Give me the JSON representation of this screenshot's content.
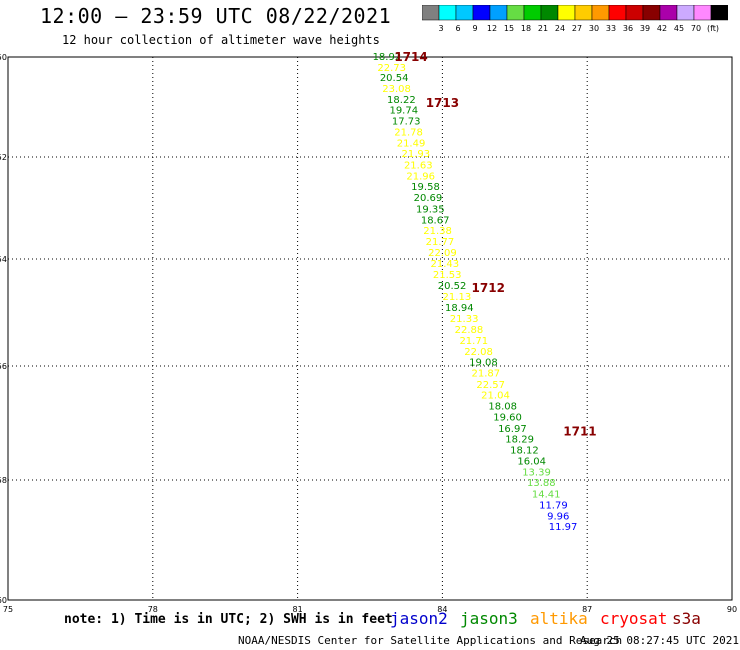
{
  "header": {
    "title": "12:00 – 23:59 UTC 08/22/2021",
    "subtitle": "12 hour collection of altimeter wave heights"
  },
  "color_scale": {
    "unit": "(ft)",
    "colors": [
      "#808080",
      "#00ffff",
      "#00c8ff",
      "#0000ff",
      "#00a0ff",
      "#66dd44",
      "#00cc00",
      "#008800",
      "#ffff00",
      "#ffcc00",
      "#ff9900",
      "#ff0000",
      "#cc0000",
      "#880000",
      "#aa00aa",
      "#ccaaff",
      "#ff88ff",
      "#000000"
    ],
    "labels": [
      "3",
      "6",
      "9",
      "12",
      "15",
      "18",
      "21",
      "24",
      "27",
      "30",
      "33",
      "36",
      "39",
      "42",
      "45",
      "70"
    ]
  },
  "chart_data": {
    "type": "scatter",
    "title": "12:00 – 23:59 UTC 08/22/2021",
    "subtitle": "12 hour collection of altimeter wave heights",
    "xlim": [
      75,
      90
    ],
    "ylim": [
      -60,
      -50
    ],
    "x_ticks": [
      "75",
      "78",
      "81",
      "84",
      "87",
      "90"
    ],
    "y_ticks": [
      "-50",
      "-52",
      "-54",
      "-56",
      "-58",
      "-60"
    ],
    "grid": true,
    "series": [
      {
        "name": "jason3",
        "points": [
          {
            "x": 82.85,
            "y": -49.98,
            "v": "18.92",
            "c": "#008800"
          },
          {
            "x": 82.95,
            "y": -50.18,
            "v": "22.73",
            "c": "#ffff00"
          },
          {
            "x": 83.0,
            "y": -50.37,
            "v": "20.54",
            "c": "#008800"
          },
          {
            "x": 83.05,
            "y": -50.57,
            "v": "23.08",
            "c": "#ffff00"
          },
          {
            "x": 83.15,
            "y": -50.77,
            "v": "18.22",
            "c": "#008800"
          },
          {
            "x": 83.2,
            "y": -50.97,
            "v": "19.74",
            "c": "#008800"
          },
          {
            "x": 83.25,
            "y": -51.17,
            "v": "17.73",
            "c": "#008800"
          },
          {
            "x": 83.3,
            "y": -51.37,
            "v": "21.78",
            "c": "#ffff00"
          },
          {
            "x": 83.35,
            "y": -51.57,
            "v": "21.49",
            "c": "#ffff00"
          },
          {
            "x": 83.45,
            "y": -51.77,
            "v": "21.93",
            "c": "#ffff00"
          },
          {
            "x": 83.5,
            "y": -51.98,
            "v": "21.63",
            "c": "#ffff00"
          },
          {
            "x": 83.55,
            "y": -52.18,
            "v": "21.96",
            "c": "#ffff00"
          },
          {
            "x": 83.65,
            "y": -52.38,
            "v": "19.58",
            "c": "#008800"
          },
          {
            "x": 83.7,
            "y": -52.58,
            "v": "20.69",
            "c": "#008800"
          },
          {
            "x": 83.75,
            "y": -52.79,
            "v": "19.35",
            "c": "#008800"
          },
          {
            "x": 83.85,
            "y": -52.99,
            "v": "18.67",
            "c": "#008800"
          },
          {
            "x": 83.9,
            "y": -53.19,
            "v": "21.38",
            "c": "#ffff00"
          },
          {
            "x": 83.95,
            "y": -53.39,
            "v": "21.77",
            "c": "#ffff00"
          },
          {
            "x": 84.0,
            "y": -53.59,
            "v": "22.09",
            "c": "#ffff00"
          },
          {
            "x": 84.05,
            "y": -53.79,
            "v": "21.43",
            "c": "#ffff00"
          },
          {
            "x": 84.1,
            "y": -54.0,
            "v": "21.53",
            "c": "#ffff00"
          },
          {
            "x": 84.2,
            "y": -54.2,
            "v": "20.52",
            "c": "#008800"
          },
          {
            "x": 84.3,
            "y": -54.4,
            "v": "21.13",
            "c": "#ffff00"
          },
          {
            "x": 84.35,
            "y": -54.6,
            "v": "18.94",
            "c": "#008800"
          },
          {
            "x": 84.45,
            "y": -54.81,
            "v": "21.33",
            "c": "#ffff00"
          },
          {
            "x": 84.55,
            "y": -55.01,
            "v": "22.88",
            "c": "#ffff00"
          },
          {
            "x": 84.65,
            "y": -55.21,
            "v": "21.71",
            "c": "#ffff00"
          },
          {
            "x": 84.75,
            "y": -55.41,
            "v": "22.08",
            "c": "#ffff00"
          },
          {
            "x": 84.85,
            "y": -55.61,
            "v": "19.08",
            "c": "#008800"
          },
          {
            "x": 84.9,
            "y": -55.81,
            "v": "21.87",
            "c": "#ffff00"
          },
          {
            "x": 85.0,
            "y": -56.02,
            "v": "22.57",
            "c": "#ffff00"
          },
          {
            "x": 85.1,
            "y": -56.22,
            "v": "21.04",
            "c": "#ffff00"
          },
          {
            "x": 85.25,
            "y": -56.42,
            "v": "18.08",
            "c": "#008800"
          },
          {
            "x": 85.35,
            "y": -56.62,
            "v": "19.60",
            "c": "#008800"
          },
          {
            "x": 85.45,
            "y": -56.83,
            "v": "16.97",
            "c": "#008800"
          },
          {
            "x": 85.6,
            "y": -57.03,
            "v": "18.29",
            "c": "#008800"
          },
          {
            "x": 85.7,
            "y": -57.23,
            "v": "18.12",
            "c": "#008800"
          },
          {
            "x": 85.85,
            "y": -57.43,
            "v": "16.04",
            "c": "#008800"
          },
          {
            "x": 85.95,
            "y": -57.63,
            "v": "13.39",
            "c": "#66dd44"
          },
          {
            "x": 86.05,
            "y": -57.83,
            "v": "13.88",
            "c": "#66dd44"
          },
          {
            "x": 86.15,
            "y": -58.04,
            "v": "14.41",
            "c": "#66dd44"
          },
          {
            "x": 86.3,
            "y": -58.24,
            "v": "11.79",
            "c": "#0000ff"
          },
          {
            "x": 86.4,
            "y": -58.44,
            "v": "9.96",
            "c": "#0000ff"
          },
          {
            "x": 86.5,
            "y": -58.64,
            "v": "11.97",
            "c": "#0000ff"
          }
        ]
      }
    ],
    "pass_labels": [
      {
        "text": "1714",
        "x": 83.35,
        "y": -50.0
      },
      {
        "text": "1713",
        "x": 84.0,
        "y": -50.85
      },
      {
        "text": "1712",
        "x": 84.95,
        "y": -54.25
      },
      {
        "text": "1711",
        "x": 86.85,
        "y": -56.9
      }
    ],
    "pass_label_color": "#880000"
  },
  "notes": {
    "note": "note: 1) Time is in UTC; 2) SWH is in feet",
    "footer_left": "NOAA/NESDIS Center for Satellite Applications and Research",
    "footer_right": "Aug 25 08:27:45 UTC 2021"
  },
  "satellites": [
    {
      "name": "jason2",
      "color": "#0000cc"
    },
    {
      "name": "jason3",
      "color": "#008800"
    },
    {
      "name": "altika",
      "color": "#ff9900"
    },
    {
      "name": "cryosat",
      "color": "#ff0000"
    },
    {
      "name": "s3a",
      "color": "#880000"
    }
  ]
}
